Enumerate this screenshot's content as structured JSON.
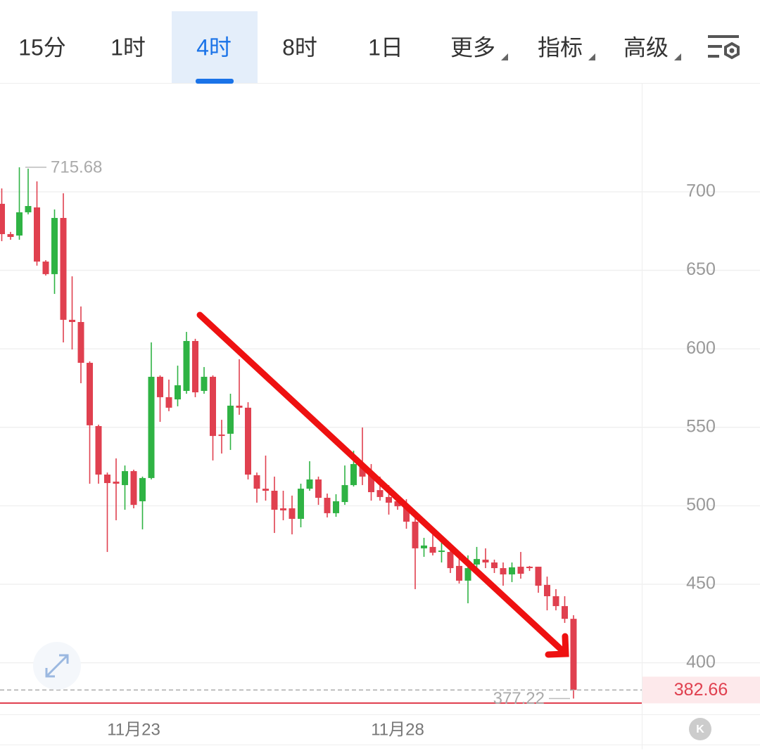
{
  "tabs": [
    "15分",
    "1时",
    "4时",
    "8时",
    "1日",
    "更多",
    "指标",
    "高级"
  ],
  "active_tab": "4时",
  "chart_data": {
    "type": "candlestick",
    "categories": [
      null,
      null,
      null,
      null,
      null,
      null,
      null,
      null,
      null,
      null,
      null,
      null,
      null,
      null,
      null,
      "11月23",
      null,
      null,
      null,
      null,
      null,
      null,
      null,
      null,
      null,
      null,
      null,
      null,
      null,
      null,
      null,
      null,
      null,
      null,
      null,
      null,
      null,
      null,
      null,
      null,
      null,
      null,
      null,
      null,
      null,
      "11月28",
      null,
      null,
      null,
      null,
      null,
      null,
      null,
      null,
      null,
      null,
      null,
      null,
      null,
      null,
      null,
      null,
      null,
      null,
      null,
      null
    ],
    "series": [
      {
        "name": "open",
        "values": [
          692.4,
          673.1,
          672.2,
          687.0,
          690.1,
          655.6,
          647.6,
          683.4,
          618.5,
          617.1,
          591.1,
          550.8,
          519.9,
          515.4,
          513.2,
          522.1,
          502.9,
          517.7,
          582.2,
          569.2,
          567.8,
          573.2,
          605.0,
          573.2,
          582.2,
          545.4,
          545.9,
          563.8,
          562.5,
          519.5,
          510.9,
          509.6,
          498.4,
          498.4,
          491.7,
          510.9,
          516.8,
          505.1,
          495.3,
          502.4,
          513.2,
          526.6,
          519.9,
          510.0,
          505.6,
          502.9,
          499.7,
          489.9,
          472.9,
          473.8,
          470.6,
          470.6,
          461.7,
          452.3,
          462.6,
          465.7,
          463.9,
          460.3,
          456.3,
          461.2,
          461.2,
          461.2,
          449.6,
          442.4,
          436.1,
          428.0
        ]
      },
      {
        "name": "high",
        "values": [
          702.2,
          674.5,
          715.68,
          714.8,
          706.7,
          656.5,
          688.8,
          699.1,
          646.2,
          627.0,
          592.0,
          551.7,
          521.2,
          530.2,
          525.7,
          523.0,
          518.6,
          604.1,
          583.1,
          580.4,
          589.3,
          610.8,
          606.4,
          588.4,
          583.1,
          554.8,
          571.4,
          593.4,
          566.0,
          521.2,
          532.0,
          518.6,
          509.6,
          506.5,
          514.1,
          528.4,
          518.6,
          507.8,
          507.4,
          525.7,
          535.1,
          549.9,
          526.6,
          518.6,
          513.2,
          506.5,
          504.2,
          493.0,
          479.6,
          481.8,
          477.3,
          475.1,
          467.0,
          468.4,
          473.8,
          472.9,
          465.7,
          463.9,
          463.9,
          470.6,
          461.7,
          461.2,
          454.9,
          446.9,
          442.4,
          430.3
        ]
      },
      {
        "name": "low",
        "values": [
          668.6,
          669.5,
          669.5,
          685.7,
          653.0,
          646.7,
          635.0,
          604.1,
          599.6,
          578.1,
          514.1,
          514.1,
          470.6,
          490.8,
          497.5,
          498.4,
          485.0,
          516.8,
          553.5,
          560.3,
          563.4,
          571.4,
          569.2,
          571.4,
          528.9,
          533.3,
          535.6,
          558.0,
          516.8,
          502.0,
          503.3,
          482.7,
          490.8,
          481.8,
          486.3,
          509.6,
          500.6,
          492.6,
          493.0,
          500.6,
          512.3,
          513.2,
          503.3,
          503.3,
          494.4,
          497.5,
          485.4,
          446.9,
          467.5,
          468.4,
          463.9,
          457.2,
          450.5,
          437.9,
          460.3,
          460.3,
          457.2,
          449.1,
          451.4,
          453.6,
          458.5,
          444.6,
          433.4,
          433.4,
          425.4,
          377.22
        ]
      },
      {
        "name": "close",
        "values": [
          673.1,
          671.3,
          687.0,
          691.0,
          655.6,
          647.6,
          683.4,
          618.5,
          617.1,
          591.1,
          551.3,
          519.9,
          514.5,
          514.1,
          522.1,
          500.6,
          517.7,
          582.2,
          569.2,
          562.5,
          576.8,
          605.0,
          572.3,
          582.2,
          544.5,
          544.5,
          563.8,
          562.5,
          519.9,
          510.9,
          509.6,
          497.5,
          497.1,
          491.7,
          510.9,
          516.8,
          505.1,
          495.3,
          502.9,
          513.2,
          526.6,
          518.6,
          508.7,
          505.6,
          502.0,
          499.7,
          489.9,
          472.9,
          474.7,
          470.1,
          471.5,
          460.3,
          452.3,
          460.3,
          466.1,
          463.9,
          460.3,
          456.3,
          460.8,
          456.7,
          460.3,
          449.1,
          442.4,
          436.1,
          428.0,
          382.66
        ]
      }
    ],
    "up_color": "#2fb344",
    "down_color": "#e0404f",
    "ylim": [
      367.6,
      768.5
    ],
    "yticks": [
      400,
      450,
      500,
      550,
      600,
      650,
      700
    ],
    "grid": true,
    "high_label": 715.68,
    "low_label": 377.22,
    "last_price": 382.66
  }
}
